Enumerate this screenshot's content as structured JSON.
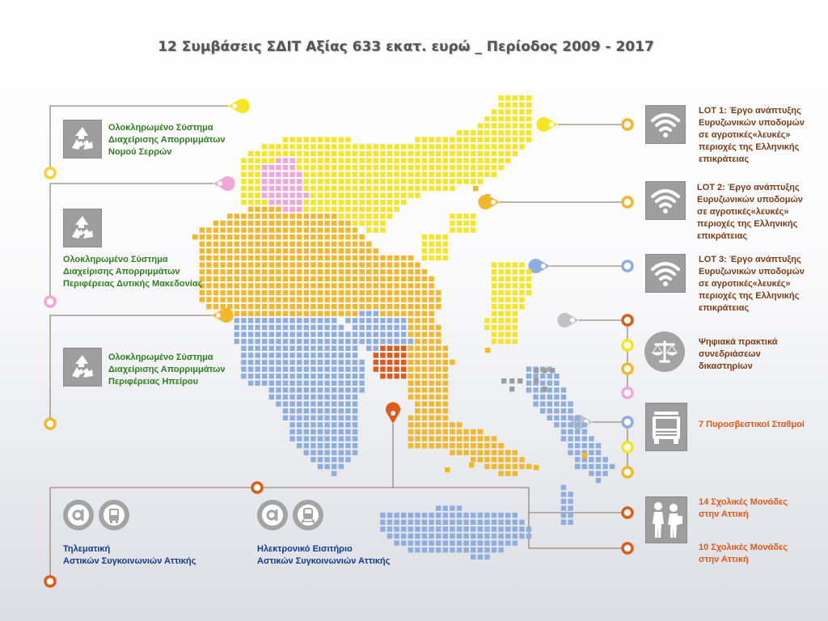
{
  "title": "12 Συμβάσεις ΣΔΙΤ Αξίας 633 εκατ. ευρώ _ Περίοδος 2009 - 2017",
  "colors": {
    "yellow": "#f5e524",
    "gold": "#f2b82c",
    "orange": "#e58a1f",
    "darkorange": "#dd5a1a",
    "blue": "#8faee0",
    "pink": "#f0a6d8",
    "gray": "#9e9e9e",
    "line": "#9a8a7a"
  },
  "left_items": [
    {
      "text": "Ολοκληρωμένο Σύστημα\nΔιαχείρισης Απορριμμάτων\nΝομού Σερρών",
      "icon": "recycle-icon"
    },
    {
      "text": "Ολοκληρωμένο Σύστημα\nΔιαχείρισης Απορριμμάτων\nΠεριφέρειας Δυτικής Μακεδονίας",
      "icon": "recycle-icon"
    },
    {
      "text": "Ολοκληρωμένο Σύστημα\nΔιαχείρισης Απορριμμάτων\nΠεριφέρειας Ηπείρου",
      "icon": "recycle-icon"
    }
  ],
  "right_items": [
    {
      "text": "LOT 1: Έργο ανάπτυξης\nΕυρυζωνικών υποδομών\nσε αγροτικές«λευκές»\nπεριοχές της Ελληνικής\nεπικράτειας",
      "icon": "wifi-icon"
    },
    {
      "text": "LOT 2: Έργο ανάπτυξης\nΕυρυζωνικών υποδομών\nσε αγροτικές«λευκές»\nπεριοχές της Ελληνικής\nεπικράτειας",
      "icon": "wifi-icon"
    },
    {
      "text": "LOT 3: Έργο ανάπτυξης\nΕυρυζωνικών υποδομών\nσε αγροτικές«λευκές»\nπεριοχές της Ελληνικής\nεπικράτειας",
      "icon": "wifi-icon"
    },
    {
      "text": "Ψηφιακά πρακτικά\nσυνεδριάσεων\nδικαστηρίων",
      "icon": "scales-icon"
    },
    {
      "text": "7 Πυροσβεστικοί Σταθμοί",
      "icon": "fire-truck-icon"
    },
    {
      "text": "14 Σχολικές Μονάδες\nστην Αττική",
      "icon": "school-children-icon"
    },
    {
      "text": "10 Σχολικές Μονάδες\nστην Αττική",
      "icon": ""
    }
  ],
  "bottom_items": [
    {
      "text": "Τηλεματική\nΑστικών Συγκοινωνιών Αττικής",
      "icons": [
        "oasa-logo-icon",
        "bus-icon"
      ]
    },
    {
      "text": "Ηλεκτρονικό Εισιτήριο\nΑστικών Συγκοινωνιών Αττικής",
      "icons": [
        "oasa-logo-icon",
        "metro-train-icon"
      ]
    }
  ]
}
